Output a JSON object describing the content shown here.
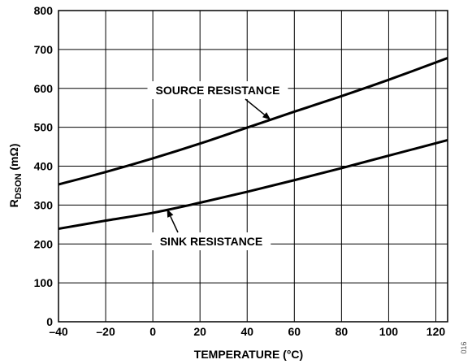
{
  "chart_data": {
    "type": "line",
    "title": "",
    "xlabel": "TEMPERATURE (°C)",
    "ylabel_main": "R",
    "ylabel_sub": "DSON",
    "ylabel_unit": " (mΩ)",
    "xlim": [
      -40,
      125
    ],
    "ylim": [
      0,
      800
    ],
    "x_ticks": [
      -40,
      -20,
      0,
      20,
      40,
      60,
      80,
      100,
      120
    ],
    "x_tick_labels": [
      "–40",
      "–20",
      "0",
      "20",
      "40",
      "60",
      "80",
      "100",
      "120"
    ],
    "y_ticks": [
      0,
      100,
      200,
      300,
      400,
      500,
      600,
      700,
      800
    ],
    "y_tick_labels": [
      "0",
      "100",
      "200",
      "300",
      "400",
      "500",
      "600",
      "700",
      "800"
    ],
    "grid": true,
    "legend": "none",
    "series": [
      {
        "name": "SOURCE RESISTANCE",
        "x": [
          -40,
          -20,
          0,
          20,
          40,
          60,
          80,
          100,
          125
        ],
        "y": [
          353,
          385,
          420,
          458,
          499,
          540,
          580,
          622,
          678
        ]
      },
      {
        "name": "SINK RESISTANCE",
        "x": [
          -40,
          -20,
          0,
          20,
          40,
          60,
          80,
          100,
          125
        ],
        "y": [
          239,
          260,
          280,
          306,
          334,
          364,
          395,
          427,
          467
        ]
      }
    ],
    "annotations": [
      {
        "text": "SOURCE RESISTANCE",
        "points_to": {
          "x": 50,
          "y": 519
        }
      },
      {
        "text": "SINK RESISTANCE",
        "points_to": {
          "x": 6,
          "y": 290
        }
      }
    ]
  },
  "figure_id": "016",
  "colors": {
    "line": "#000000",
    "grid": "#000000",
    "background": "#ffffff"
  }
}
